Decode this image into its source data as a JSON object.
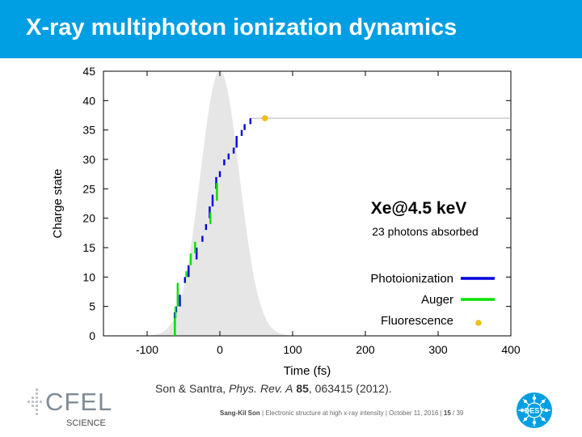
{
  "slide": {
    "title": "X-ray multiphoton ionization dynamics",
    "accent_color": "#009fe3"
  },
  "chart_data": {
    "type": "line",
    "xlabel": "Time (fs)",
    "ylabel": "Charge state",
    "xlim": [
      -160,
      400
    ],
    "ylim": [
      0,
      45
    ],
    "x_ticks": [
      -100,
      0,
      100,
      200,
      300,
      400
    ],
    "y_ticks": [
      0,
      5,
      10,
      15,
      20,
      25,
      30,
      35,
      40,
      45
    ],
    "grid": false,
    "pulse_envelope": {
      "shape": "gaussian",
      "center_fs": 0,
      "peak_charge_scale": 45,
      "sigma_fs": 27,
      "color": "#e6e6e6"
    },
    "annotations": {
      "system": "Xe@4.5 keV",
      "photons": "23 photons absorbed"
    },
    "legend": {
      "placement": "bottom-right",
      "entries": [
        {
          "label": "Photoionization",
          "color": "#0000dd",
          "marker": "line"
        },
        {
          "label": "Auger",
          "color": "#00e000",
          "marker": "line"
        },
        {
          "label": "Fluorescence",
          "color": "#f5c400",
          "marker": "point"
        }
      ]
    },
    "series": [
      {
        "name": "Photoionization",
        "color": "#0000dd",
        "segments": [
          [
            -62,
            0,
            4
          ],
          [
            -60,
            4,
            5
          ],
          [
            -55,
            5,
            7
          ],
          [
            -48,
            9,
            10
          ],
          [
            -43,
            10,
            12
          ],
          [
            -32,
            13,
            15
          ],
          [
            -24,
            16,
            17
          ],
          [
            -19,
            18,
            19
          ],
          [
            -14,
            20,
            22
          ],
          [
            -10,
            22,
            24
          ],
          [
            -5,
            25,
            27
          ],
          [
            0,
            27,
            28
          ],
          [
            6,
            29,
            30
          ],
          [
            12,
            30,
            31
          ],
          [
            19,
            31,
            32
          ],
          [
            23,
            32,
            34
          ],
          [
            30,
            34,
            35
          ],
          [
            34,
            35,
            36
          ],
          [
            42,
            36,
            37
          ]
        ]
      },
      {
        "name": "Auger",
        "color": "#00e000",
        "segments": [
          [
            -62,
            0,
            3
          ],
          [
            -61,
            3,
            5
          ],
          [
            -58,
            5,
            9
          ],
          [
            -46,
            10,
            11
          ],
          [
            -40,
            12,
            14
          ],
          [
            -34,
            14,
            16
          ],
          [
            -13,
            19,
            21
          ],
          [
            -4,
            23,
            26
          ]
        ]
      },
      {
        "name": "Fluorescence",
        "color": "#f5c400",
        "points": [
          [
            62,
            37
          ]
        ]
      }
    ],
    "final_charge": 37
  },
  "citation": {
    "authors": "Son & Santra, ",
    "journal": "Phys. Rev. A",
    "volume": "85",
    "rest": ", 063415 (2012)."
  },
  "footer": {
    "speaker": "Sang-Kil Son",
    "talk": "Electronic structure at high x-ray intensity",
    "date": "October 11, 2016",
    "page": "15",
    "total": "/ 39"
  },
  "logos": {
    "cfel": "CFEL",
    "science": "SCIENCE",
    "desy": "DESY"
  }
}
